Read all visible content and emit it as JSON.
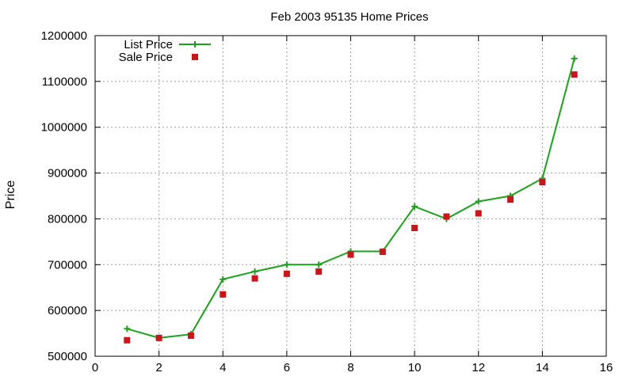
{
  "chart_data": {
    "type": "line",
    "title": "Feb 2003 95135 Home Prices",
    "xlabel": "",
    "ylabel": "Price",
    "xlim": [
      0,
      16
    ],
    "ylim": [
      500000,
      1200000
    ],
    "xticks": [
      0,
      2,
      4,
      6,
      8,
      10,
      12,
      14,
      16
    ],
    "yticks": [
      500000,
      600000,
      700000,
      800000,
      900000,
      1000000,
      1100000,
      1200000
    ],
    "grid": true,
    "legend_position": "top-left",
    "series": [
      {
        "name": "List Price",
        "style": "line-with-plus-markers",
        "color": "#1aa31a",
        "x": [
          1,
          2,
          3,
          4,
          5,
          6,
          7,
          8,
          9,
          10,
          11,
          12,
          13,
          14,
          15
        ],
        "y": [
          560000,
          540000,
          548000,
          668000,
          685000,
          700000,
          700000,
          729000,
          729000,
          827000,
          800000,
          838000,
          850000,
          888000,
          1150000
        ]
      },
      {
        "name": "Sale Price",
        "style": "square-markers",
        "color": "#c8161d",
        "x": [
          1,
          2,
          3,
          4,
          5,
          6,
          7,
          8,
          9,
          10,
          11,
          12,
          13,
          14,
          15
        ],
        "y": [
          535000,
          540000,
          545000,
          635000,
          670000,
          680000,
          685000,
          722000,
          728000,
          780000,
          805000,
          812000,
          842000,
          880000,
          1115000
        ]
      }
    ]
  }
}
